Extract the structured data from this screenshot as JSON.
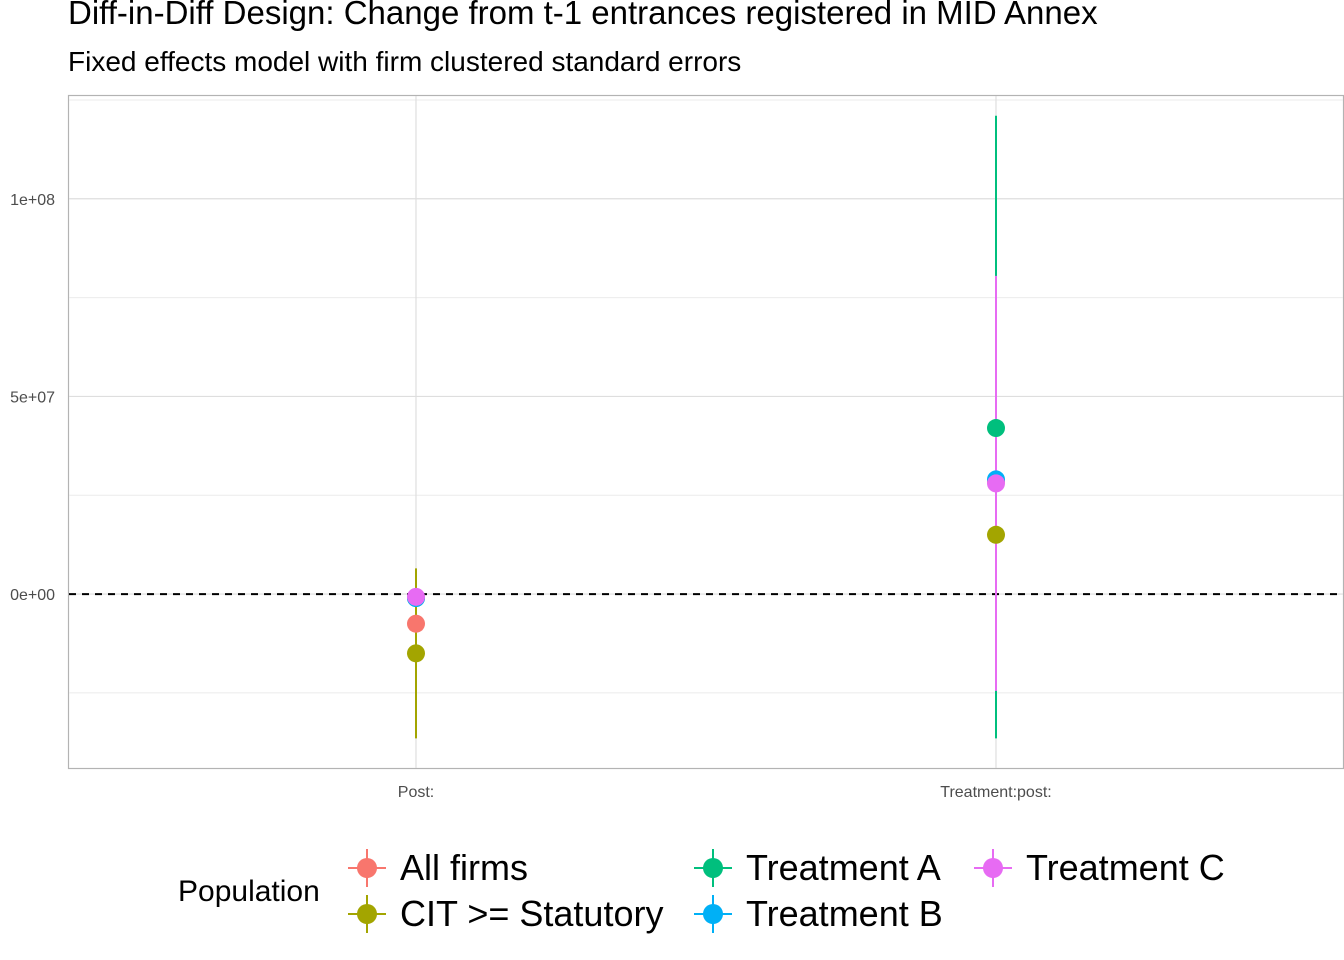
{
  "title": "Diff-in-Diff Design: Change from t-1 entrances registered in MID Annex",
  "subtitle": "Fixed effects model with firm clustered standard errors",
  "legend": {
    "title": "Population",
    "items": [
      {
        "label": "All firms",
        "color": "#F8766D"
      },
      {
        "label": "CIT >= Statutory",
        "color": "#A3A500"
      },
      {
        "label": "Treatment A",
        "color": "#00BF7D"
      },
      {
        "label": "Treatment B",
        "color": "#00B0F6"
      },
      {
        "label": "Treatment C",
        "color": "#E76BF3"
      }
    ]
  },
  "chart_data": {
    "type": "scatter",
    "categories": [
      "Post:",
      "Treatment:post:"
    ],
    "y_ticks": [
      0,
      50000000,
      100000000
    ],
    "y_tick_labels": [
      "0e+00",
      "5e+07",
      "1e+08"
    ],
    "ylim": [
      -44000000,
      126000000
    ],
    "reference_line": 0,
    "grid": true,
    "legend_position": "bottom",
    "series": [
      {
        "name": "All firms",
        "color": "#F8766D",
        "values": [
          -7500000,
          28500000
        ],
        "lower": [
          -11000000,
          24000000
        ],
        "upper": [
          -4000000,
          33000000
        ]
      },
      {
        "name": "CIT >= Statutory",
        "color": "#A3A500",
        "values": [
          -15000000,
          15000000
        ],
        "lower": [
          -36500000,
          -6000000
        ],
        "upper": [
          6500000,
          36500000
        ]
      },
      {
        "name": "Treatment A",
        "color": "#00BF7D",
        "values": [
          -1000000,
          42000000
        ],
        "lower": [
          -3000000,
          -36500000
        ],
        "upper": [
          1000000,
          121000000
        ]
      },
      {
        "name": "Treatment B",
        "color": "#00B0F6",
        "values": [
          -1000000,
          29000000
        ],
        "lower": [
          -3000000,
          25000000
        ],
        "upper": [
          1000000,
          33000000
        ]
      },
      {
        "name": "Treatment C",
        "color": "#E76BF3",
        "values": [
          -700000,
          28000000
        ],
        "lower": [
          -2500000,
          -24500000
        ],
        "upper": [
          1000000,
          80500000
        ]
      }
    ]
  }
}
